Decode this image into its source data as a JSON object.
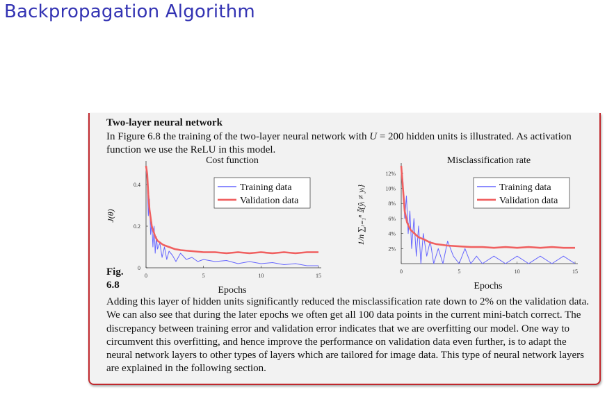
{
  "slide": {
    "title": "Backpropagation Algorithm"
  },
  "block": {
    "title": "Two-layer neural network",
    "intro_pre": "In Figure 6.8 the training of the two-layer neural network with ",
    "intro_var": "U",
    "intro_post": " = 200 hidden units is illustrated.  As activation function we use the ReLU in this model.",
    "figure_label": "Fig. 6.8",
    "body": "Adding this layer of hidden units significantly reduced the misclassification rate down to 2% on the validation data. We can also see that during the later epochs we often get all 100 data points in the current mini-batch correct. The discrepancy between training error and validation error indicates that we are overfitting our model. One way to circumvent this overfitting, and hence improve the performance on validation data even further, is to adapt the neural network layers to other types of layers which are tailored for image data. This type of neural network layers are explained in the following section."
  },
  "colors": {
    "title": "#3333b3",
    "border": "#c0282d",
    "training": "#6666ff",
    "validation": "#f06060"
  },
  "chart_data": [
    {
      "type": "line",
      "title": "Cost function",
      "xlabel": "Epochs",
      "ylabel": "J(θ)",
      "xlim": [
        0,
        15
      ],
      "ylim": [
        0,
        0.5
      ],
      "x_ticks": [
        0,
        5,
        10,
        15
      ],
      "x_tick_labels": [
        "0",
        "5",
        "10",
        "15"
      ],
      "y_ticks": [
        0,
        0.2,
        0.4
      ],
      "y_tick_labels": [
        "0",
        "0.2",
        "0.4"
      ],
      "legend": "top-right",
      "series": [
        {
          "name": "Training data",
          "color": "#6666ff",
          "x": [
            0,
            0.1,
            0.2,
            0.3,
            0.4,
            0.5,
            0.6,
            0.7,
            0.8,
            0.9,
            1.0,
            1.2,
            1.4,
            1.6,
            1.8,
            2.0,
            2.3,
            2.6,
            3.0,
            3.5,
            4.0,
            4.5,
            5.0,
            6.0,
            7.0,
            8.0,
            9.0,
            10.0,
            11.0,
            12.0,
            13.0,
            14.0,
            15.0
          ],
          "values": [
            0.48,
            0.42,
            0.25,
            0.33,
            0.16,
            0.22,
            0.1,
            0.2,
            0.07,
            0.15,
            0.09,
            0.12,
            0.05,
            0.1,
            0.04,
            0.08,
            0.06,
            0.03,
            0.07,
            0.04,
            0.05,
            0.03,
            0.04,
            0.03,
            0.035,
            0.02,
            0.03,
            0.02,
            0.025,
            0.015,
            0.02,
            0.01,
            0.01
          ]
        },
        {
          "name": "Validation data",
          "color": "#f06060",
          "x": [
            0,
            0.1,
            0.2,
            0.3,
            0.5,
            0.8,
            1.0,
            1.5,
            2.0,
            2.5,
            3.0,
            4.0,
            5.0,
            6.0,
            7.0,
            8.0,
            9.0,
            10.0,
            11.0,
            12.0,
            13.0,
            14.0,
            15.0
          ],
          "values": [
            0.49,
            0.45,
            0.35,
            0.28,
            0.2,
            0.15,
            0.13,
            0.11,
            0.1,
            0.09,
            0.085,
            0.08,
            0.075,
            0.075,
            0.07,
            0.075,
            0.07,
            0.075,
            0.07,
            0.075,
            0.07,
            0.075,
            0.075
          ]
        }
      ]
    },
    {
      "type": "line",
      "title": "Misclassification rate",
      "xlabel": "Epochs",
      "ylabel": "1/n ∑ᵢ₌₁ⁿ 𝕀{ŷᵢ ≠ yᵢ}",
      "xlim": [
        0,
        15
      ],
      "ylim": [
        0,
        13
      ],
      "x_ticks": [
        0,
        5,
        10,
        15
      ],
      "x_tick_labels": [
        "0",
        "5",
        "10",
        "15"
      ],
      "y_ticks": [
        2,
        4,
        6,
        8,
        10,
        12
      ],
      "y_tick_labels": [
        "2%",
        "4%",
        "6%",
        "8%",
        "10%",
        "12%"
      ],
      "legend": "top-right",
      "series": [
        {
          "name": "Training data",
          "color": "#6666ff",
          "x": [
            0,
            0.15,
            0.3,
            0.45,
            0.6,
            0.75,
            0.9,
            1.1,
            1.3,
            1.5,
            1.7,
            1.9,
            2.2,
            2.5,
            2.8,
            3.2,
            3.6,
            4.0,
            4.5,
            5.0,
            5.5,
            6.0,
            6.5,
            7.0,
            8.0,
            9.0,
            10.0,
            11.0,
            12.0,
            13.0,
            14.0,
            15.0
          ],
          "values": [
            13,
            11,
            6,
            9,
            4,
            7,
            2,
            6,
            1,
            5,
            0,
            4,
            1,
            3,
            0,
            2,
            0,
            3,
            1,
            0,
            2,
            0,
            1,
            0,
            1,
            0,
            1,
            0,
            1,
            0,
            1,
            0
          ]
        },
        {
          "name": "Validation data",
          "color": "#f06060",
          "x": [
            0,
            0.15,
            0.3,
            0.5,
            0.8,
            1.0,
            1.5,
            2.0,
            2.5,
            3.0,
            4.0,
            5.0,
            6.0,
            7.0,
            8.0,
            9.0,
            10.0,
            11.0,
            12.0,
            13.0,
            14.0,
            15.0
          ],
          "values": [
            13,
            10,
            7,
            5.5,
            4.5,
            4.2,
            3.5,
            3.2,
            2.8,
            2.6,
            2.4,
            2.3,
            2.2,
            2.2,
            2.1,
            2.2,
            2.1,
            2.2,
            2.1,
            2.2,
            2.1,
            2.1
          ]
        }
      ]
    }
  ]
}
